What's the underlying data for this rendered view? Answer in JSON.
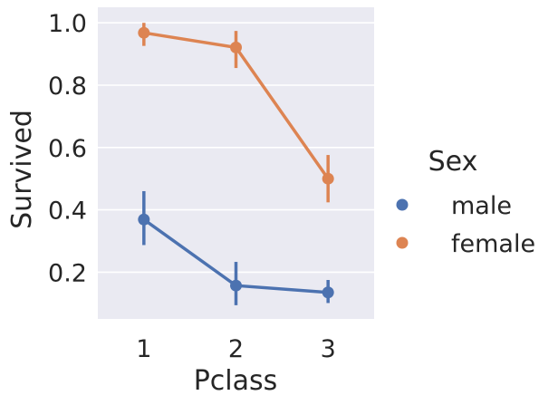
{
  "chart_data": {
    "type": "line",
    "x": [
      "1",
      "2",
      "3"
    ],
    "xlabel": "Pclass",
    "ylabel": "Survived",
    "ylim": [
      0.05,
      1.05
    ],
    "yticks": [
      "0.2",
      "0.4",
      "0.6",
      "0.8",
      "1.0"
    ],
    "grid": true,
    "legend": {
      "title": "Sex",
      "placement": "right-outside"
    },
    "series": [
      {
        "name": "male",
        "color": "#4c72b0",
        "values": [
          0.369,
          0.157,
          0.135
        ],
        "ci_low": [
          0.287,
          0.094,
          0.101
        ],
        "ci_high": [
          0.46,
          0.233,
          0.175
        ]
      },
      {
        "name": "female",
        "color": "#dd8452",
        "values": [
          0.968,
          0.921,
          0.5
        ],
        "ci_low": [
          0.926,
          0.855,
          0.424
        ],
        "ci_high": [
          1.0,
          0.974,
          0.576
        ]
      }
    ]
  }
}
